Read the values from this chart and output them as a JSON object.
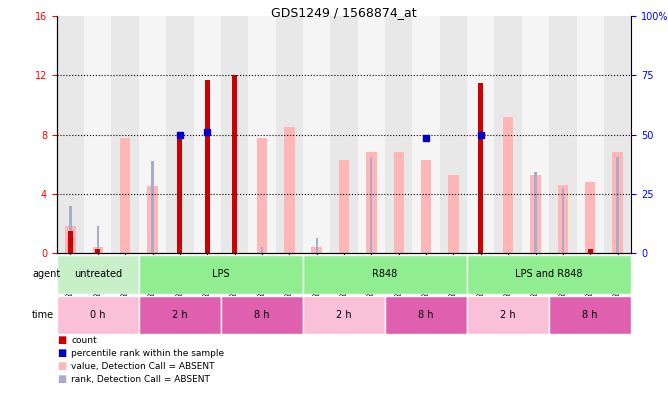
{
  "title": "GDS1249 / 1568874_at",
  "samples": [
    "GSM52346",
    "GSM52353",
    "GSM52360",
    "GSM52340",
    "GSM52347",
    "GSM52354",
    "GSM52343",
    "GSM52350",
    "GSM52357",
    "GSM52341",
    "GSM52348",
    "GSM52355",
    "GSM52344",
    "GSM52351",
    "GSM52358",
    "GSM52342",
    "GSM52349",
    "GSM52356",
    "GSM52345",
    "GSM52352",
    "GSM52359"
  ],
  "count_values": [
    1.5,
    0.3,
    0.0,
    0.0,
    8.0,
    11.7,
    12.0,
    0.0,
    0.0,
    0.0,
    0.0,
    0.0,
    0.0,
    0.0,
    0.0,
    11.5,
    0.0,
    0.0,
    0.0,
    0.3,
    0.0
  ],
  "absent_value": [
    1.8,
    0.4,
    7.8,
    4.5,
    0.0,
    0.0,
    0.0,
    7.8,
    8.5,
    0.4,
    6.3,
    6.8,
    6.8,
    6.3,
    5.3,
    0.0,
    9.2,
    5.3,
    4.6,
    4.8,
    6.8
  ],
  "absent_rank": [
    3.2,
    1.8,
    0.0,
    6.2,
    0.0,
    0.0,
    0.0,
    0.4,
    0.0,
    1.0,
    0.0,
    6.5,
    0.0,
    0.0,
    0.0,
    0.0,
    0.0,
    5.5,
    4.4,
    0.0,
    6.5
  ],
  "percentile_rank": [
    0.0,
    0.0,
    0.0,
    0.0,
    8.0,
    8.2,
    0.0,
    0.0,
    0.0,
    0.0,
    0.0,
    0.0,
    0.0,
    7.8,
    0.0,
    8.0,
    0.0,
    0.0,
    0.0,
    0.0,
    0.0
  ],
  "ylim_left": [
    0,
    16
  ],
  "ylim_right": [
    0,
    100
  ],
  "yticks_left": [
    0,
    4,
    8,
    12,
    16
  ],
  "yticks_right": [
    0,
    25,
    50,
    75,
    100
  ],
  "ytick_labels_right": [
    "0",
    "25",
    "50",
    "75",
    "100%"
  ],
  "hlines": [
    4,
    8,
    12
  ],
  "agent_groups": [
    {
      "label": "untreated",
      "start": 0,
      "end": 3
    },
    {
      "label": "LPS",
      "start": 3,
      "end": 9
    },
    {
      "label": "R848",
      "start": 9,
      "end": 15
    },
    {
      "label": "LPS and R848",
      "start": 15,
      "end": 21
    }
  ],
  "agent_colors": [
    "#C8F0C8",
    "#90EE90",
    "#90EE90",
    "#90EE90"
  ],
  "time_groups": [
    {
      "label": "0 h",
      "start": 0,
      "end": 3
    },
    {
      "label": "2 h",
      "start": 3,
      "end": 6
    },
    {
      "label": "8 h",
      "start": 6,
      "end": 9
    },
    {
      "label": "2 h",
      "start": 9,
      "end": 12
    },
    {
      "label": "8 h",
      "start": 12,
      "end": 15
    },
    {
      "label": "2 h",
      "start": 15,
      "end": 18
    },
    {
      "label": "8 h",
      "start": 18,
      "end": 21
    }
  ],
  "time_colors": [
    "#F9C0D8",
    "#E060B0",
    "#E060B0",
    "#F9C0D8",
    "#E060B0",
    "#F9C0D8",
    "#E060B0"
  ],
  "count_bar_width": 0.18,
  "absent_value_bar_width": 0.38,
  "absent_rank_bar_width": 0.18,
  "count_color": "#CC0000",
  "absent_value_color": "#FFB6B6",
  "absent_rank_color": "#AAAACC",
  "percentile_color": "#0000CC",
  "col_bg_even": "#E8E8E8",
  "col_bg_odd": "#F5F5F5"
}
